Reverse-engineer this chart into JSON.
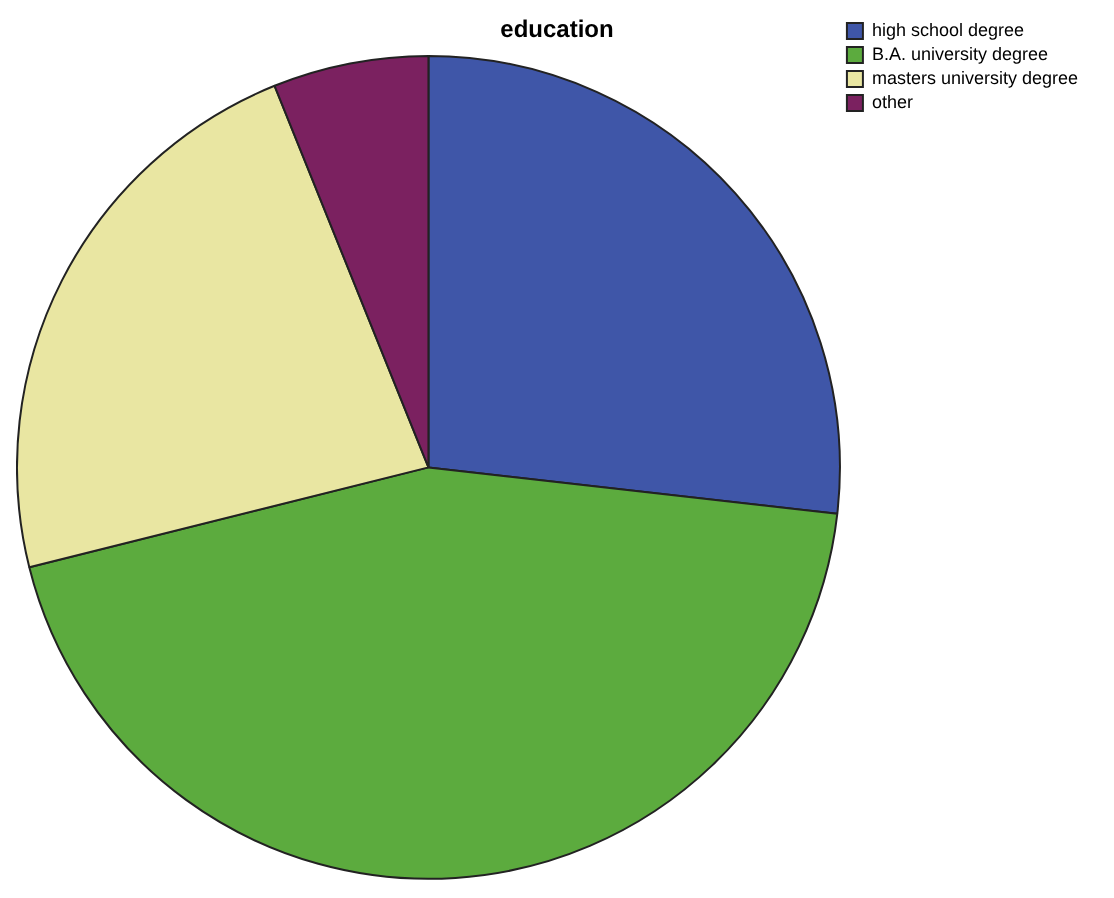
{
  "chart_data": {
    "type": "pie",
    "title": "education",
    "categories": [
      "high school degree",
      "B.A. university degree",
      "masters university degree",
      "other"
    ],
    "values": [
      26.8,
      44.3,
      22.8,
      6.1
    ],
    "colors": [
      "#3f56a8",
      "#5cab3e",
      "#e9e6a2",
      "#7b2160"
    ],
    "legend": "top right"
  }
}
